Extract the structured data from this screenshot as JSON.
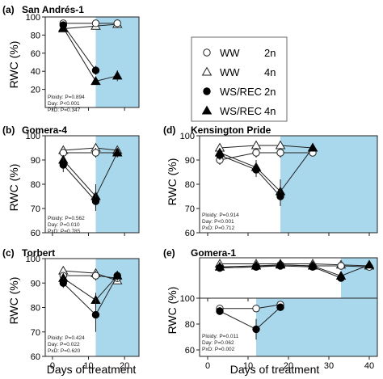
{
  "legend": {
    "items": [
      {
        "group": "WW",
        "ploidy": "2n",
        "marker": "open-circle"
      },
      {
        "group": "WW",
        "ploidy": "4n",
        "marker": "open-triangle"
      },
      {
        "group": "WS/REC",
        "ploidy": "2n",
        "marker": "filled-circle"
      },
      {
        "group": "WS/REC",
        "ploidy": "4n",
        "marker": "filled-triangle"
      }
    ]
  },
  "colors": {
    "shade": "#a9d8ec",
    "line": "#222222"
  },
  "shared": {
    "ylabel": "RWC (%)",
    "xlabel": "Days of treatment"
  },
  "chart_data": [
    {
      "panel": "(a)",
      "title": "San Andrés-1",
      "type": "line",
      "ylim": [
        0,
        100
      ],
      "yticks": [
        20,
        40,
        60,
        80,
        100
      ],
      "xlim": [
        -2,
        24
      ],
      "xticks": [],
      "shade_from": 12,
      "stats": [
        "Ploidy: P=0.894",
        "Day: P<0.001",
        "PxD: P=0.347"
      ],
      "series": [
        {
          "name": "WW 2n",
          "x": [
            3,
            12,
            18
          ],
          "y": [
            93,
            93,
            93
          ],
          "err": [
            3,
            2,
            2
          ]
        },
        {
          "name": "WW 4n",
          "x": [
            3,
            12,
            18
          ],
          "y": [
            87,
            90,
            92
          ],
          "err": [
            3,
            3,
            2
          ]
        },
        {
          "name": "WS/REC 2n",
          "x": [
            3,
            12
          ],
          "y": [
            91,
            41
          ],
          "err": [
            2,
            5
          ]
        },
        {
          "name": "WS/REC 4n",
          "x": [
            3,
            12,
            18
          ],
          "y": [
            88,
            29,
            35
          ],
          "err": [
            2,
            3,
            6
          ]
        }
      ]
    },
    {
      "panel": "(b)",
      "title": "Gomera-4",
      "type": "line",
      "ylim": [
        60,
        100
      ],
      "yticks": [
        60,
        70,
        80,
        90,
        100
      ],
      "xlim": [
        -2,
        24
      ],
      "xticks": [],
      "shade_from": 12,
      "stats": [
        "Ploidy: P=0.562",
        "Day: P=0.010",
        "PxD: P=0.785"
      ],
      "series": [
        {
          "name": "WW 2n",
          "x": [
            3,
            12,
            18
          ],
          "y": [
            93,
            93,
            93
          ],
          "err": [
            1,
            2,
            1
          ]
        },
        {
          "name": "WW 4n",
          "x": [
            3,
            12,
            18
          ],
          "y": [
            94,
            95,
            94
          ],
          "err": [
            1,
            1,
            1
          ]
        },
        {
          "name": "WS/REC 2n",
          "x": [
            3,
            12
          ],
          "y": [
            88,
            73
          ],
          "err": [
            3,
            4
          ]
        },
        {
          "name": "WS/REC 4n",
          "x": [
            3,
            12,
            18
          ],
          "y": [
            90,
            75,
            93
          ],
          "err": [
            2,
            5,
            2
          ]
        }
      ]
    },
    {
      "panel": "(c)",
      "title": "Torbert",
      "type": "line",
      "ylim": [
        60,
        100
      ],
      "yticks": [
        60,
        70,
        80,
        90,
        100
      ],
      "xlim": [
        -2,
        24
      ],
      "xticks": [
        0,
        10,
        20
      ],
      "shade_from": 12,
      "stats": [
        "Ploidy: P=0.424",
        "Day: P=0.022",
        "PxD: P=0.620"
      ],
      "series": [
        {
          "name": "WW 2n",
          "x": [
            3,
            12,
            18
          ],
          "y": [
            93,
            93,
            92
          ],
          "err": [
            1,
            2,
            1
          ]
        },
        {
          "name": "WW 4n",
          "x": [
            3,
            12,
            18
          ],
          "y": [
            95,
            94,
            91
          ],
          "err": [
            1,
            1,
            1
          ]
        },
        {
          "name": "WS/REC 2n",
          "x": [
            3,
            12,
            18
          ],
          "y": [
            90,
            77,
            93
          ],
          "err": [
            2,
            7,
            2
          ]
        },
        {
          "name": "WS/REC 4n",
          "x": [
            3,
            12,
            18
          ],
          "y": [
            92,
            83,
            93
          ],
          "err": [
            2,
            3,
            2
          ]
        }
      ]
    },
    {
      "panel": "(d)",
      "title": "Kensington Pride",
      "type": "line",
      "ylim": [
        60,
        100
      ],
      "yticks": [
        60,
        70,
        80,
        90,
        100
      ],
      "xlim": [
        -2,
        42
      ],
      "xticks": [],
      "shade_from": 18,
      "stats": [
        "Ploidy: P=0.914",
        "Day: P<0.001",
        "PxD: P=0.712"
      ],
      "series": [
        {
          "name": "WW 2n",
          "x": [
            3,
            12,
            18,
            26
          ],
          "y": [
            90,
            93,
            93,
            93
          ],
          "err": [
            2,
            2,
            2,
            1
          ]
        },
        {
          "name": "WW 4n",
          "x": [
            3,
            12,
            18,
            26
          ],
          "y": [
            95,
            96,
            96,
            95
          ],
          "err": [
            1,
            1,
            1,
            1
          ]
        },
        {
          "name": "WS/REC 2n",
          "x": [
            3,
            12,
            18
          ],
          "y": [
            92,
            86,
            75
          ],
          "err": [
            2,
            3,
            4
          ]
        },
        {
          "name": "WS/REC 4n",
          "x": [
            3,
            12,
            18,
            26
          ],
          "y": [
            93,
            87,
            77,
            95
          ],
          "err": [
            2,
            3,
            5,
            1
          ]
        }
      ]
    },
    {
      "panel": "(e)",
      "title": "Gomera-1",
      "type": "line",
      "ylim": [
        60,
        100
      ],
      "yticks": [],
      "xlim": [
        -2,
        42
      ],
      "xticks": [],
      "shade_from": 33,
      "stats": [],
      "series": [
        {
          "name": "WW 2n",
          "x": [
            3,
            12,
            18,
            26,
            33,
            40
          ],
          "y": [
            90,
            91,
            93,
            92,
            92,
            91
          ],
          "err": [
            1,
            1,
            1,
            1,
            1,
            1
          ]
        },
        {
          "name": "WW 4n",
          "x": [
            3,
            12,
            18,
            26,
            33,
            40
          ],
          "y": [
            94,
            94,
            94,
            94,
            93,
            92
          ],
          "err": [
            1,
            1,
            1,
            1,
            1,
            1
          ]
        },
        {
          "name": "WS/REC 2n",
          "x": [
            3,
            12,
            18,
            26,
            33
          ],
          "y": [
            90,
            91,
            92,
            91,
            80
          ],
          "err": [
            1,
            1,
            1,
            1,
            2
          ]
        },
        {
          "name": "WS/REC 4n",
          "x": [
            3,
            12,
            18,
            26,
            33,
            40
          ],
          "y": [
            91,
            92,
            93,
            92,
            82,
            93
          ],
          "err": [
            1,
            1,
            1,
            1,
            2,
            1
          ]
        }
      ]
    },
    {
      "panel": "(e-lower)",
      "title": "",
      "type": "line",
      "ylim": [
        55,
        100
      ],
      "yticks": [
        60,
        80,
        100
      ],
      "xlim": [
        -2,
        42
      ],
      "xticks": [
        0,
        10,
        20,
        30,
        40
      ],
      "shade_from": 12,
      "stats": [
        "Ploidy: P=0.011",
        "Day: P=0.062",
        "PxD: P=0.002"
      ],
      "series": [
        {
          "name": "WW 2n",
          "x": [
            3,
            12,
            18
          ],
          "y": [
            92,
            92,
            95
          ],
          "err": [
            2,
            1,
            1
          ]
        },
        {
          "name": "WS/REC 2n",
          "x": [
            3,
            12,
            18
          ],
          "y": [
            90,
            76,
            93
          ],
          "err": [
            3,
            8,
            2
          ]
        }
      ]
    }
  ]
}
